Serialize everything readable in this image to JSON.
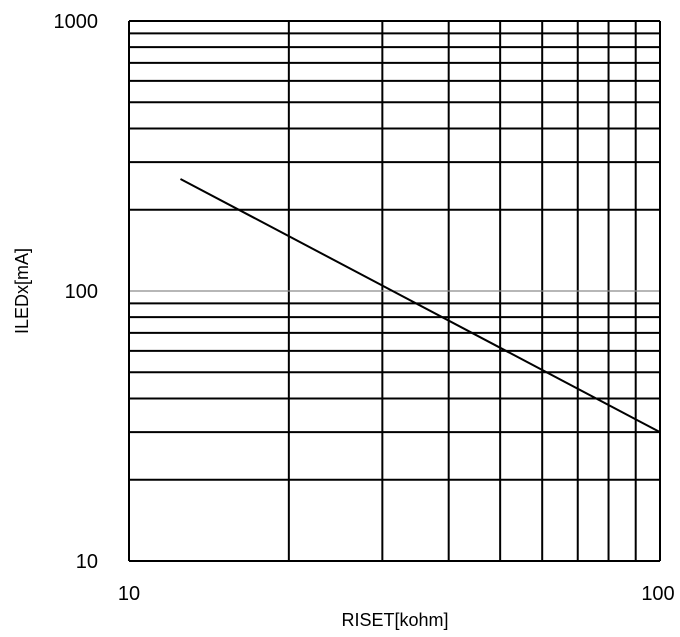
{
  "chart_data": {
    "type": "line",
    "title": "",
    "xlabel": "RISET[kohm]",
    "ylabel": "ILEDx[mA]",
    "xscale": "log",
    "yscale": "log",
    "xlim": [
      10,
      100
    ],
    "ylim": [
      10,
      1000
    ],
    "x_tick_labels": [
      "10",
      "100"
    ],
    "y_tick_labels": [
      "10",
      "100",
      "1000"
    ],
    "grid": true,
    "legend": "none",
    "series": [
      {
        "x": [
          12.5,
          100
        ],
        "y": [
          260,
          30
        ]
      }
    ],
    "colors": {
      "line": "#000000",
      "grid": "#000000",
      "decade_line": "#8c8c8c",
      "background": "#ffffff"
    }
  }
}
